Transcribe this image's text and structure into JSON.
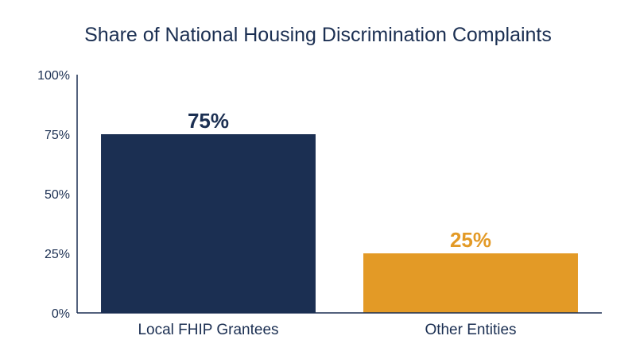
{
  "chart_data": {
    "type": "bar",
    "title": "Share of National Housing Discrimination Complaints",
    "categories": [
      "Local FHIP Grantees",
      "Other Entities"
    ],
    "values": [
      75,
      25
    ],
    "data_labels": [
      "75%",
      "25%"
    ],
    "bar_colors": [
      "#1b2f52",
      "#e39a26"
    ],
    "ylim": [
      0,
      100
    ],
    "yticks": [
      0,
      25,
      50,
      75,
      100
    ],
    "ytick_labels": [
      "0%",
      "25%",
      "50%",
      "75%",
      "100%"
    ],
    "xlabel": "",
    "ylabel": "",
    "grid": false,
    "legend": "none"
  },
  "colors": {
    "text": "#1b2f52",
    "axis": "#1b2f52"
  }
}
